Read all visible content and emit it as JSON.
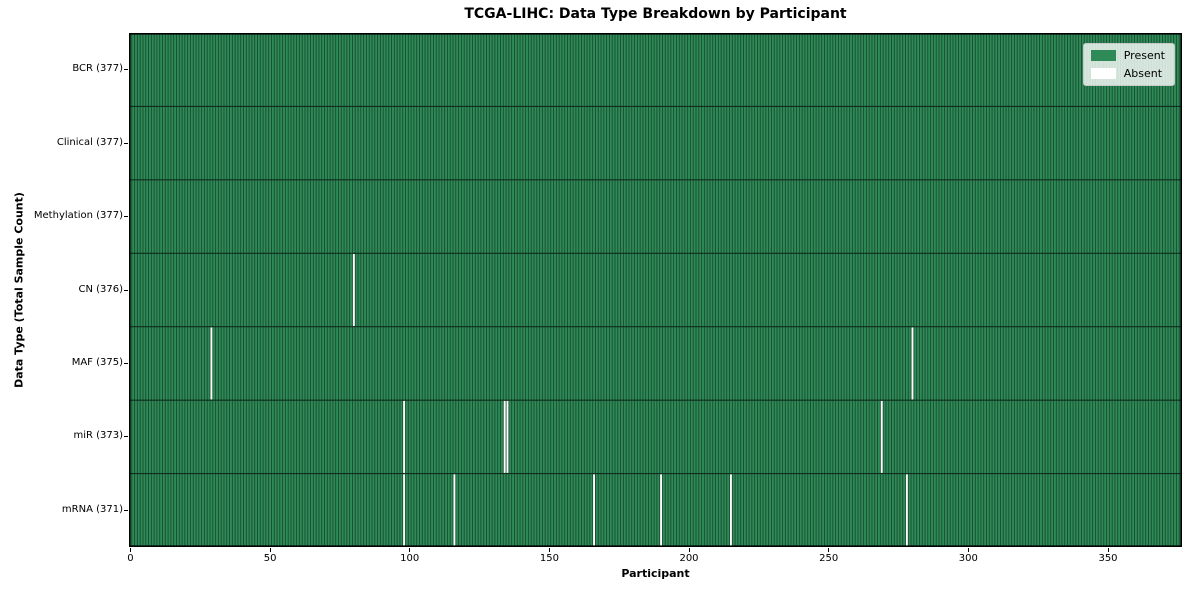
{
  "chart_data": {
    "type": "heatmap",
    "title": "TCGA-LIHC: Data Type Breakdown by Participant",
    "xlabel": "Participant",
    "ylabel": "Data Type (Total Sample Count)",
    "n_participants": 377,
    "x_axis_range": [
      -0.5,
      376.5
    ],
    "xticks": [
      0,
      50,
      100,
      150,
      200,
      250,
      300,
      350
    ],
    "grid": "cell-borders-on",
    "legend_position": "upper-right",
    "rows": [
      {
        "label": "BCR (377)",
        "data_type": "BCR",
        "present_count": 377,
        "absent_participants": []
      },
      {
        "label": "Clinical (377)",
        "data_type": "Clinical",
        "present_count": 377,
        "absent_participants": []
      },
      {
        "label": "Methylation (377)",
        "data_type": "Methylation",
        "present_count": 377,
        "absent_participants": []
      },
      {
        "label": "CN (376)",
        "data_type": "CN",
        "present_count": 376,
        "absent_participants": [
          80
        ]
      },
      {
        "label": "MAF (375)",
        "data_type": "MAF",
        "present_count": 375,
        "absent_participants": [
          29,
          280
        ]
      },
      {
        "label": "miR (373)",
        "data_type": "miR",
        "present_count": 373,
        "absent_participants": [
          98,
          134,
          135,
          269
        ]
      },
      {
        "label": "mRNA (371)",
        "data_type": "mRNA",
        "present_count": 371,
        "absent_participants": [
          98,
          116,
          166,
          190,
          215,
          278
        ]
      }
    ],
    "legend": {
      "present_label": "Present",
      "absent_label": "Absent"
    },
    "colors": {
      "present": "#2e8b57",
      "absent": "#ffffff",
      "cell_gridline": "#194b30",
      "row_separator": "#0f2c1c",
      "plot_border": "#000000",
      "legend_border": "#c9c9c9",
      "text": "#000000"
    }
  }
}
